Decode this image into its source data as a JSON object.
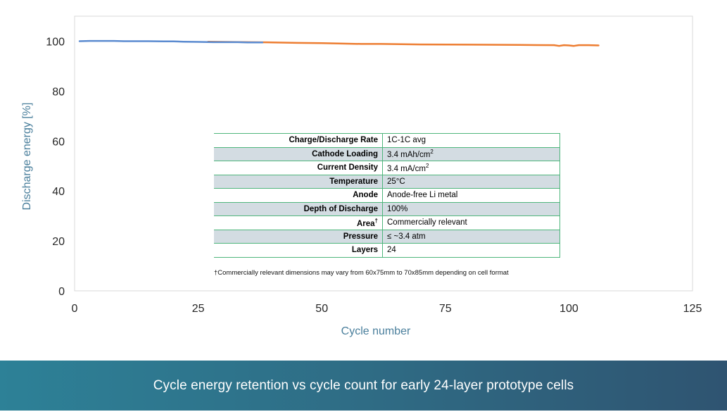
{
  "chart_data": {
    "type": "line",
    "xlabel": "Cycle number",
    "ylabel": "Discharge energy [%]",
    "xlim": [
      0,
      125
    ],
    "ylim": [
      0,
      110
    ],
    "xticks": [
      0,
      25,
      50,
      75,
      100,
      125
    ],
    "yticks": [
      0,
      20,
      40,
      60,
      80,
      100
    ],
    "grid": false,
    "series": [
      {
        "color": "#ed7d31",
        "x": [
          27,
          30,
          35,
          40,
          45,
          50,
          55,
          58,
          62,
          70,
          80,
          90,
          97,
          98,
          99,
          100,
          101,
          102,
          104,
          106
        ],
        "y": [
          99.8,
          99.7,
          99.6,
          99.5,
          99.3,
          99.2,
          99.0,
          98.9,
          98.9,
          98.7,
          98.6,
          98.5,
          98.4,
          98.1,
          98.4,
          98.3,
          98.1,
          98.4,
          98.4,
          98.3
        ]
      },
      {
        "color": "#5b8bd0",
        "x": [
          1,
          3,
          5,
          8,
          10,
          15,
          18,
          20,
          22,
          25,
          28,
          30,
          33,
          35,
          38
        ],
        "y": [
          100.0,
          100.1,
          100.1,
          100.1,
          100.0,
          100.0,
          99.9,
          99.9,
          99.8,
          99.7,
          99.6,
          99.6,
          99.6,
          99.5,
          99.5
        ]
      }
    ]
  },
  "table": {
    "rows": [
      {
        "label": "Charge/Discharge Rate",
        "value": "1C-1C avg"
      },
      {
        "label": "Cathode Loading",
        "value": "3.4 mAh/cm",
        "sup": "2"
      },
      {
        "label": "Current Density",
        "value": "3.4 mA/cm",
        "sup": "2"
      },
      {
        "label": "Temperature",
        "value": "25°C"
      },
      {
        "label": "Anode",
        "value": "Anode-free Li metal"
      },
      {
        "label": "Depth of Discharge",
        "value": "100%"
      },
      {
        "label": "Area",
        "label_sup": "†",
        "value": "Commercially relevant"
      },
      {
        "label": "Pressure",
        "value": "≤ ~3.4 atm"
      },
      {
        "label": "Layers",
        "value": "24"
      }
    ],
    "footnote": "†Commercially relevant dimensions may vary from 60x75mm to 70x85mm depending on cell format"
  },
  "caption": "Cycle energy retention vs cycle count for early 24-layer prototype cells",
  "colors": {
    "axis_title": "#4a7f9c",
    "table_border": "#4fb67c",
    "table_shade": "#d3dce2",
    "caption_bg_left": "#2d8197",
    "caption_bg_right": "#2f5471"
  }
}
